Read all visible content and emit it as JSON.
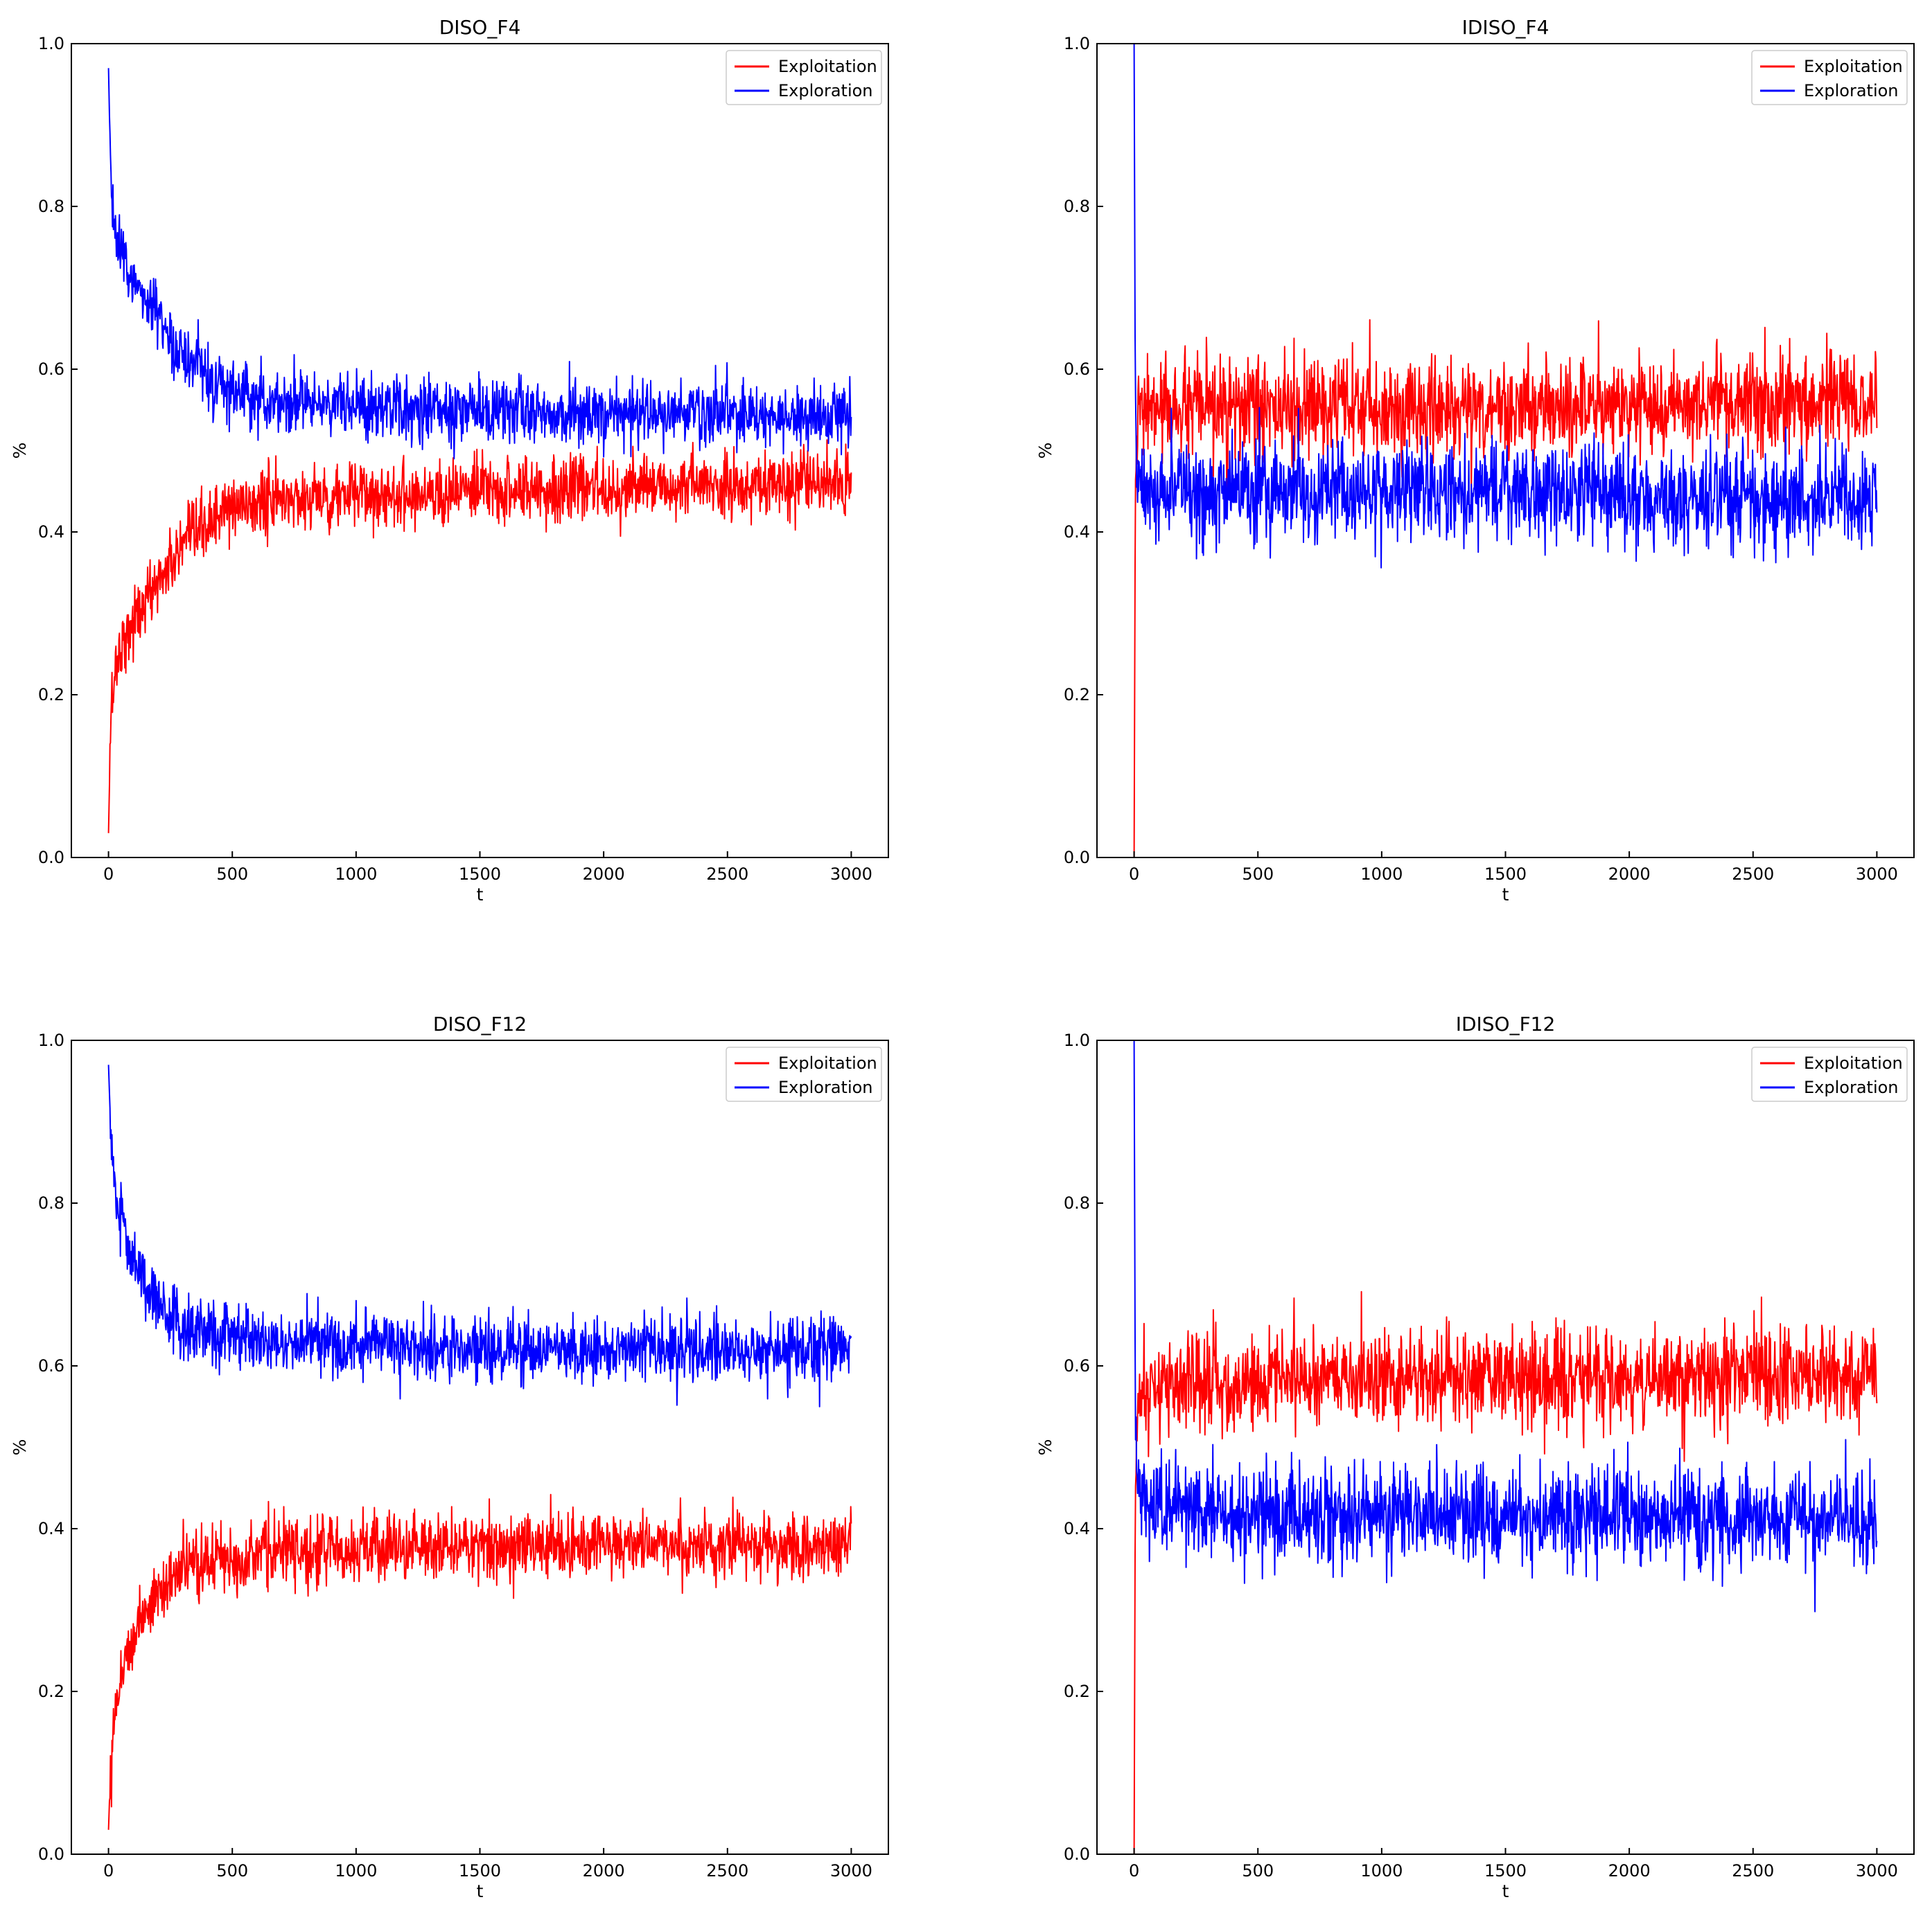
{
  "figure": {
    "colors": {
      "exploitation": "#ff0000",
      "exploration": "#0000ff",
      "axes": "#000000",
      "background": "#ffffff"
    }
  },
  "chart_data": [
    {
      "type": "line",
      "title": "DISO_F4",
      "xlabel": "t",
      "ylabel": "%",
      "xlim": [
        -150,
        3150
      ],
      "ylim": [
        0,
        1
      ],
      "xticks": [
        "0",
        "500",
        "1000",
        "1500",
        "2000",
        "2500",
        "3000"
      ],
      "yticks": [
        "0.0",
        "0.2",
        "0.4",
        "0.6",
        "0.8",
        "1.0"
      ],
      "legend": {
        "position": "top-right",
        "entries": [
          "Exploitation",
          "Exploration"
        ]
      },
      "grid": false,
      "series": [
        {
          "name": "Exploitation",
          "color": "#ff0000",
          "x": [
            0,
            10,
            25,
            50,
            100,
            200,
            300,
            400,
            500,
            700,
            1000,
            1500,
            2000,
            2500,
            3000
          ],
          "y": [
            0.03,
            0.18,
            0.23,
            0.26,
            0.29,
            0.34,
            0.38,
            0.41,
            0.43,
            0.44,
            0.445,
            0.45,
            0.455,
            0.455,
            0.46
          ],
          "noise": 0.02
        },
        {
          "name": "Exploration",
          "color": "#0000ff",
          "x": [
            0,
            10,
            25,
            50,
            100,
            200,
            300,
            400,
            500,
            700,
            1000,
            1500,
            2000,
            2500,
            3000
          ],
          "y": [
            0.97,
            0.82,
            0.77,
            0.74,
            0.71,
            0.66,
            0.62,
            0.59,
            0.57,
            0.56,
            0.555,
            0.55,
            0.545,
            0.545,
            0.54
          ],
          "noise": 0.02
        }
      ]
    },
    {
      "type": "line",
      "title": "IDISO_F4",
      "xlabel": "t",
      "ylabel": "%",
      "xlim": [
        -150,
        3150
      ],
      "ylim": [
        0,
        1
      ],
      "xticks": [
        "0",
        "500",
        "1000",
        "1500",
        "2000",
        "2500",
        "3000"
      ],
      "yticks": [
        "0.0",
        "0.2",
        "0.4",
        "0.6",
        "0.8",
        "1.0"
      ],
      "legend": {
        "position": "top-right",
        "entries": [
          "Exploitation",
          "Exploration"
        ]
      },
      "grid": false,
      "series": [
        {
          "name": "Exploitation",
          "color": "#ff0000",
          "x": [
            0,
            5,
            15,
            50,
            200,
            1000,
            2000,
            3000
          ],
          "y": [
            0.0,
            0.45,
            0.54,
            0.55,
            0.55,
            0.55,
            0.555,
            0.56
          ],
          "noise": 0.03
        },
        {
          "name": "Exploration",
          "color": "#0000ff",
          "x": [
            0,
            5,
            15,
            50,
            200,
            1000,
            2000,
            3000
          ],
          "y": [
            1.0,
            0.55,
            0.46,
            0.45,
            0.45,
            0.45,
            0.445,
            0.44
          ],
          "noise": 0.03
        }
      ]
    },
    {
      "type": "line",
      "title": "DISO_F12",
      "xlabel": "t",
      "ylabel": "%",
      "xlim": [
        -150,
        3150
      ],
      "ylim": [
        0,
        1
      ],
      "xticks": [
        "0",
        "500",
        "1000",
        "1500",
        "2000",
        "2500",
        "3000"
      ],
      "yticks": [
        "0.0",
        "0.2",
        "0.4",
        "0.6",
        "0.8",
        "1.0"
      ],
      "legend": {
        "position": "top-right",
        "entries": [
          "Exploitation",
          "Exploration"
        ]
      },
      "grid": false,
      "series": [
        {
          "name": "Exploitation",
          "color": "#ff0000",
          "x": [
            0,
            10,
            25,
            50,
            100,
            150,
            200,
            300,
            400,
            600,
            1000,
            1500,
            2000,
            2500,
            3000
          ],
          "y": [
            0.03,
            0.12,
            0.18,
            0.22,
            0.27,
            0.3,
            0.32,
            0.35,
            0.36,
            0.37,
            0.375,
            0.38,
            0.38,
            0.38,
            0.38
          ],
          "noise": 0.02
        },
        {
          "name": "Exploration",
          "color": "#0000ff",
          "x": [
            0,
            10,
            25,
            50,
            100,
            150,
            200,
            300,
            400,
            600,
            1000,
            1500,
            2000,
            2500,
            3000
          ],
          "y": [
            0.97,
            0.88,
            0.82,
            0.78,
            0.73,
            0.7,
            0.68,
            0.65,
            0.64,
            0.63,
            0.625,
            0.62,
            0.62,
            0.62,
            0.62
          ],
          "noise": 0.02
        }
      ]
    },
    {
      "type": "line",
      "title": "IDISO_F12",
      "xlabel": "t",
      "ylabel": "%",
      "xlim": [
        -150,
        3150
      ],
      "ylim": [
        0,
        1
      ],
      "xticks": [
        "0",
        "500",
        "1000",
        "1500",
        "2000",
        "2500",
        "3000"
      ],
      "yticks": [
        "0.0",
        "0.2",
        "0.4",
        "0.6",
        "0.8",
        "1.0"
      ],
      "legend": {
        "position": "top-right",
        "entries": [
          "Exploitation",
          "Exploration"
        ]
      },
      "grid": false,
      "series": [
        {
          "name": "Exploitation",
          "color": "#ff0000",
          "x": [
            0,
            5,
            15,
            50,
            200,
            1000,
            2000,
            3000
          ],
          "y": [
            0.0,
            0.46,
            0.55,
            0.57,
            0.58,
            0.585,
            0.585,
            0.59
          ],
          "noise": 0.03
        },
        {
          "name": "Exploration",
          "color": "#0000ff",
          "x": [
            0,
            5,
            15,
            50,
            200,
            1000,
            2000,
            3000
          ],
          "y": [
            1.0,
            0.54,
            0.45,
            0.43,
            0.42,
            0.415,
            0.415,
            0.41
          ],
          "noise": 0.03
        }
      ]
    }
  ]
}
